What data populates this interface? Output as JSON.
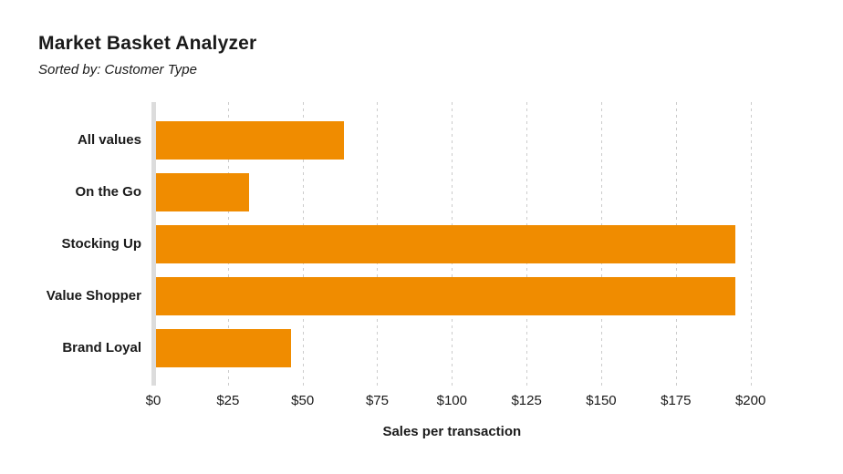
{
  "header": {
    "title": "Market Basket Analyzer",
    "subtitle": "Sorted by: Customer Type"
  },
  "chart_data": {
    "type": "bar",
    "orientation": "horizontal",
    "title": "Market Basket Analyzer",
    "subtitle": "Sorted by: Customer Type",
    "categories": [
      "All values",
      "On the Go",
      "Stocking Up",
      "Value Shopper",
      "Brand Loyal"
    ],
    "values": [
      64,
      32,
      195,
      195,
      46
    ],
    "value_unit": "USD",
    "xlabel": "Sales per transaction",
    "ylabel": "",
    "x_ticks": [
      0,
      25,
      50,
      75,
      100,
      125,
      150,
      175,
      200
    ],
    "x_tick_labels": [
      "$0",
      "$25",
      "$50",
      "$75",
      "$100",
      "$125",
      "$150",
      "$175",
      "$200"
    ],
    "xlim": [
      0,
      216
    ],
    "grid": "vertical-dotted",
    "legend": "none",
    "bar_color": "#F08C00",
    "gridline_color": "#CCCCCC",
    "axis_line_color": "#DCDCDC",
    "text_color": "#1A1A1A"
  }
}
